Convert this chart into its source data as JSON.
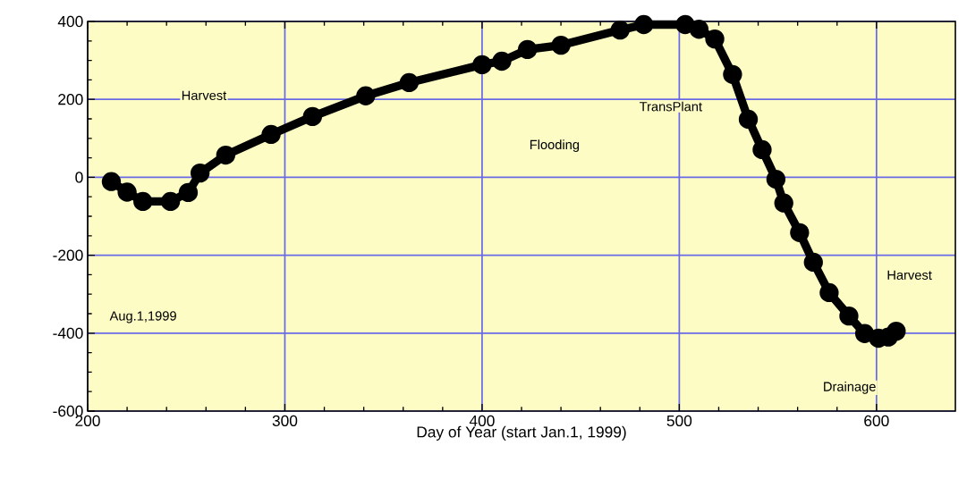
{
  "chart_data": {
    "type": "line",
    "xlabel": "Day of Year (start Jan.1, 1999)",
    "xlim": [
      200,
      640
    ],
    "xticks": [
      200,
      300,
      400,
      500,
      600
    ],
    "ylim": [
      -600,
      400
    ],
    "yticks": [
      -600,
      -400,
      -200,
      0,
      200,
      400
    ],
    "grid": true,
    "marker": "circle",
    "line_style": "solid",
    "series": [
      {
        "color": "#000000",
        "x": [
          212,
          220,
          228,
          242,
          251,
          257,
          270,
          293,
          314,
          341,
          363,
          400,
          410,
          423,
          440,
          470,
          482,
          503,
          510,
          518,
          527,
          535,
          542,
          549,
          553,
          561,
          568,
          576,
          586,
          594,
          601,
          606,
          610
        ],
        "values": [
          -11,
          -38,
          -62,
          -62,
          -39,
          11,
          57,
          110,
          156,
          209,
          243,
          289,
          298,
          328,
          339,
          378,
          392,
          392,
          380,
          355,
          264,
          149,
          71,
          -5,
          -66,
          -142,
          -218,
          -296,
          -356,
          -401,
          -413,
          -410,
          -395
        ]
      }
    ],
    "annotations": [
      "Harvest",
      "Flooding",
      "TransPlant",
      "Harvest",
      "Drainage",
      "Aug.1,1999"
    ]
  }
}
